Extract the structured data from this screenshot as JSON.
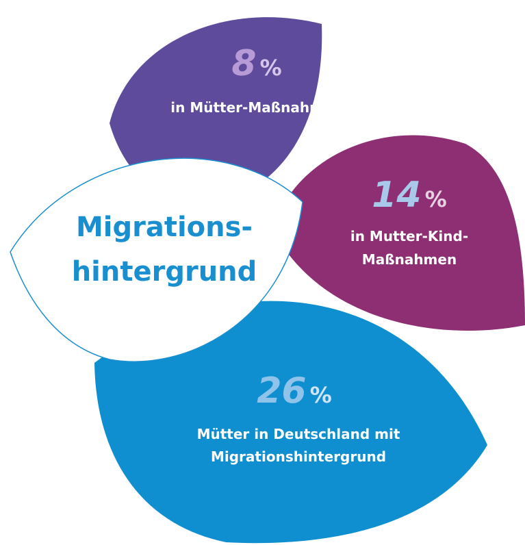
{
  "heading": {
    "lines": [
      "Migrations-",
      "hintergrund"
    ]
  },
  "items": [
    {
      "value": 8,
      "unit": "%",
      "label_lines": [
        "in Mütter-Maßnahmen"
      ]
    },
    {
      "value": 14,
      "unit": "%",
      "label_lines": [
        "in Mutter-Kind-",
        "Maßnahmen"
      ]
    },
    {
      "value": 26,
      "unit": "%",
      "label_lines": [
        "Mütter in Deutschland mit",
        "Migrationshintergrund"
      ]
    }
  ]
}
